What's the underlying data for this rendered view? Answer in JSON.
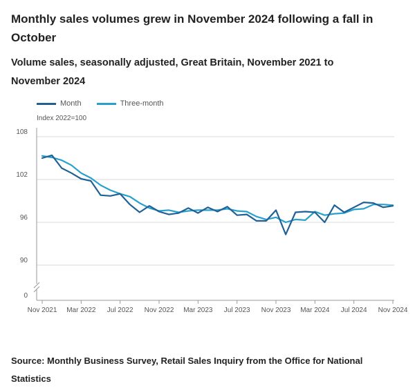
{
  "title": "Monthly sales volumes grew in November 2024 following a fall in October",
  "subtitle": "Volume sales, seasonally adjusted, Great Britain, November 2021 to November 2024",
  "source": "Source: Monthly Business Survey, Retail Sales Inquiry from the Office for National Statistics",
  "chart_data": {
    "type": "line",
    "index_label": "Index 2022=100",
    "x": [
      "Nov 2021",
      "Dec 2021",
      "Jan 2022",
      "Feb 2022",
      "Mar 2022",
      "Apr 2022",
      "May 2022",
      "Jun 2022",
      "Jul 2022",
      "Aug 2022",
      "Sep 2022",
      "Oct 2022",
      "Nov 2022",
      "Dec 2022",
      "Jan 2023",
      "Feb 2023",
      "Mar 2023",
      "Apr 2023",
      "May 2023",
      "Jun 2023",
      "Jul 2023",
      "Aug 2023",
      "Sep 2023",
      "Oct 2023",
      "Nov 2023",
      "Dec 2023",
      "Jan 2024",
      "Feb 2024",
      "Mar 2024",
      "Apr 2024",
      "May 2024",
      "Jun 2024",
      "Jul 2024",
      "Aug 2024",
      "Sep 2024",
      "Oct 2024",
      "Nov 2024"
    ],
    "xticks": [
      "Nov 2021",
      "Mar 2022",
      "Jul 2022",
      "Nov 2022",
      "Mar 2023",
      "Jul 2023",
      "Nov 2023",
      "Mar 2024",
      "Jul 2024",
      "Nov 2024"
    ],
    "xtick_indices": [
      0,
      4,
      8,
      12,
      16,
      20,
      24,
      28,
      32,
      36
    ],
    "yticks": [
      108,
      102,
      96,
      90,
      0
    ],
    "ylim": [
      87.5,
      109
    ],
    "axis_break": true,
    "series": [
      {
        "name": "Month",
        "color": "#206095",
        "values": [
          105.0,
          105.4,
          103.6,
          102.9,
          102.1,
          101.8,
          99.8,
          99.7,
          100.0,
          98.5,
          97.4,
          98.3,
          97.5,
          97.1,
          97.3,
          98.0,
          97.3,
          98.1,
          97.5,
          98.2,
          97.0,
          97.1,
          96.2,
          96.2,
          97.7,
          94.3,
          97.4,
          97.5,
          97.4,
          96.0,
          98.4,
          97.4,
          98.1,
          98.8,
          98.7,
          98.1,
          98.3
        ]
      },
      {
        "name": "Three-month",
        "color": "#27A0CC",
        "values": [
          105.3,
          105.1,
          104.7,
          104.0,
          102.9,
          102.2,
          101.2,
          100.5,
          100.0,
          99.6,
          98.7,
          98.0,
          97.6,
          97.7,
          97.4,
          97.6,
          97.7,
          97.7,
          97.7,
          97.9,
          97.6,
          97.5,
          96.8,
          96.4,
          96.7,
          96.0,
          96.4,
          96.3,
          97.5,
          97.0,
          97.2,
          97.3,
          97.8,
          97.9,
          98.5,
          98.5,
          98.4
        ]
      }
    ]
  }
}
